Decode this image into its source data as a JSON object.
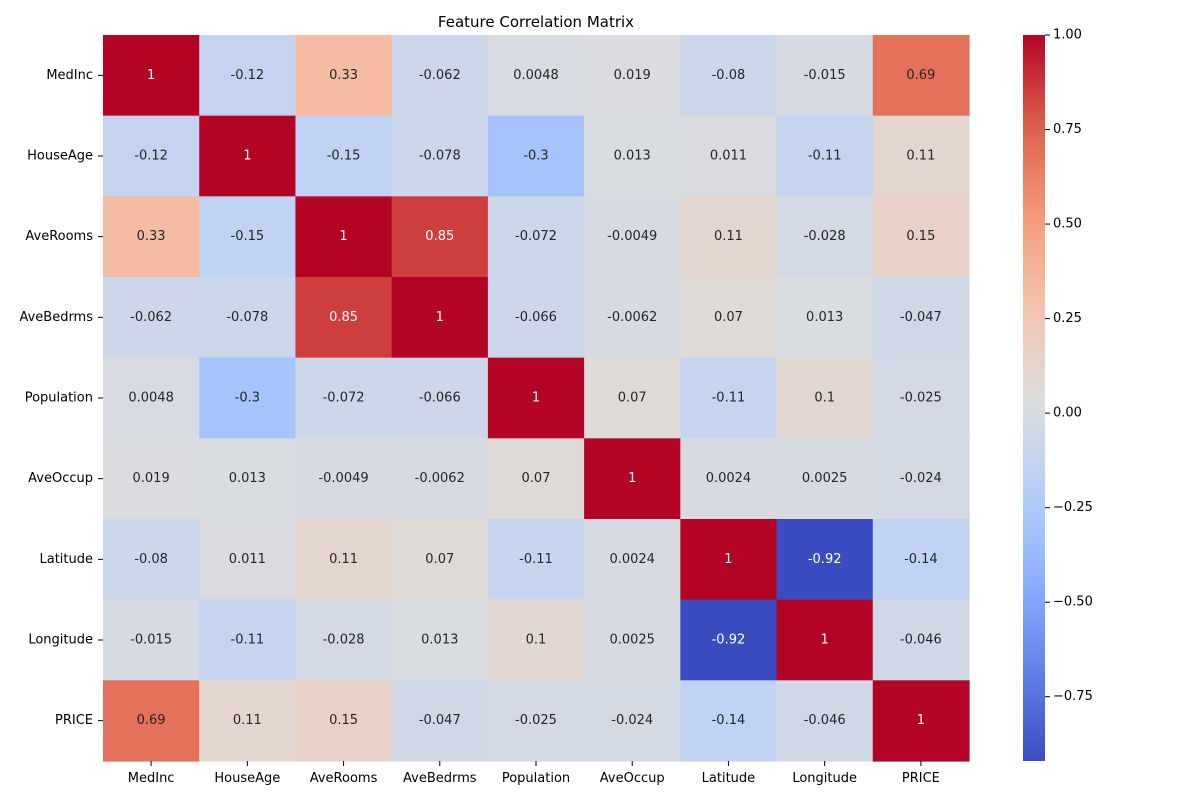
{
  "chart_data": {
    "type": "heatmap",
    "title": "Feature Correlation Matrix",
    "xlabel": "",
    "ylabel": "",
    "x_categories": [
      "MedInc",
      "HouseAge",
      "AveRooms",
      "AveBedrms",
      "Population",
      "AveOccup",
      "Latitude",
      "Longitude",
      "PRICE"
    ],
    "y_categories": [
      "MedInc",
      "HouseAge",
      "AveRooms",
      "AveBedrms",
      "Population",
      "AveOccup",
      "Latitude",
      "Longitude",
      "PRICE"
    ],
    "values": [
      [
        1,
        -0.12,
        0.33,
        -0.062,
        0.0048,
        0.019,
        -0.08,
        -0.015,
        0.69
      ],
      [
        -0.12,
        1,
        -0.15,
        -0.078,
        -0.3,
        0.013,
        0.011,
        -0.11,
        0.11
      ],
      [
        0.33,
        -0.15,
        1,
        0.85,
        -0.072,
        -0.0049,
        0.11,
        -0.028,
        0.15
      ],
      [
        -0.062,
        -0.078,
        0.85,
        1,
        -0.066,
        -0.0062,
        0.07,
        0.013,
        -0.047
      ],
      [
        0.0048,
        -0.3,
        -0.072,
        -0.066,
        1,
        0.07,
        -0.11,
        0.1,
        -0.025
      ],
      [
        0.019,
        0.013,
        -0.0049,
        -0.0062,
        0.07,
        1,
        0.0024,
        0.0025,
        -0.024
      ],
      [
        -0.08,
        0.011,
        0.11,
        0.07,
        -0.11,
        0.0024,
        1,
        -0.92,
        -0.14
      ],
      [
        -0.015,
        -0.11,
        -0.028,
        0.013,
        0.1,
        0.0025,
        -0.92,
        1,
        -0.046
      ],
      [
        0.69,
        0.11,
        0.15,
        -0.047,
        -0.025,
        -0.024,
        -0.14,
        -0.046,
        1
      ]
    ],
    "annotations": [
      [
        "1",
        "-0.12",
        "0.33",
        "-0.062",
        "0.0048",
        "0.019",
        "-0.08",
        "-0.015",
        "0.69"
      ],
      [
        "-0.12",
        "1",
        "-0.15",
        "-0.078",
        "-0.3",
        "0.013",
        "0.011",
        "-0.11",
        "0.11"
      ],
      [
        "0.33",
        "-0.15",
        "1",
        "0.85",
        "-0.072",
        "-0.0049",
        "0.11",
        "-0.028",
        "0.15"
      ],
      [
        "-0.062",
        "-0.078",
        "0.85",
        "1",
        "-0.066",
        "-0.0062",
        "0.07",
        "0.013",
        "-0.047"
      ],
      [
        "0.0048",
        "-0.3",
        "-0.072",
        "-0.066",
        "1",
        "0.07",
        "-0.11",
        "0.1",
        "-0.025"
      ],
      [
        "0.019",
        "0.013",
        "-0.0049",
        "-0.0062",
        "0.07",
        "1",
        "0.0024",
        "0.0025",
        "-0.024"
      ],
      [
        "-0.08",
        "0.011",
        "0.11",
        "0.07",
        "-0.11",
        "0.0024",
        "1",
        "-0.92",
        "-0.14"
      ],
      [
        "-0.015",
        "-0.11",
        "-0.028",
        "0.013",
        "0.1",
        "0.0025",
        "-0.92",
        "1",
        "-0.046"
      ],
      [
        "0.69",
        "0.11",
        "0.15",
        "-0.047",
        "-0.025",
        "-0.024",
        "-0.14",
        "-0.046",
        "1"
      ]
    ],
    "colormap": "coolwarm",
    "colorbar": {
      "vmin": -0.92,
      "vmax": 1.0,
      "ticks": [
        1.0,
        0.75,
        0.5,
        0.25,
        0.0,
        -0.25,
        -0.5,
        -0.75
      ],
      "tick_labels": [
        "1.00",
        "0.75",
        "0.50",
        "0.25",
        "0.00",
        "−0.25",
        "−0.50",
        "−0.75"
      ]
    },
    "grid": false,
    "legend": "colorbar-right"
  }
}
